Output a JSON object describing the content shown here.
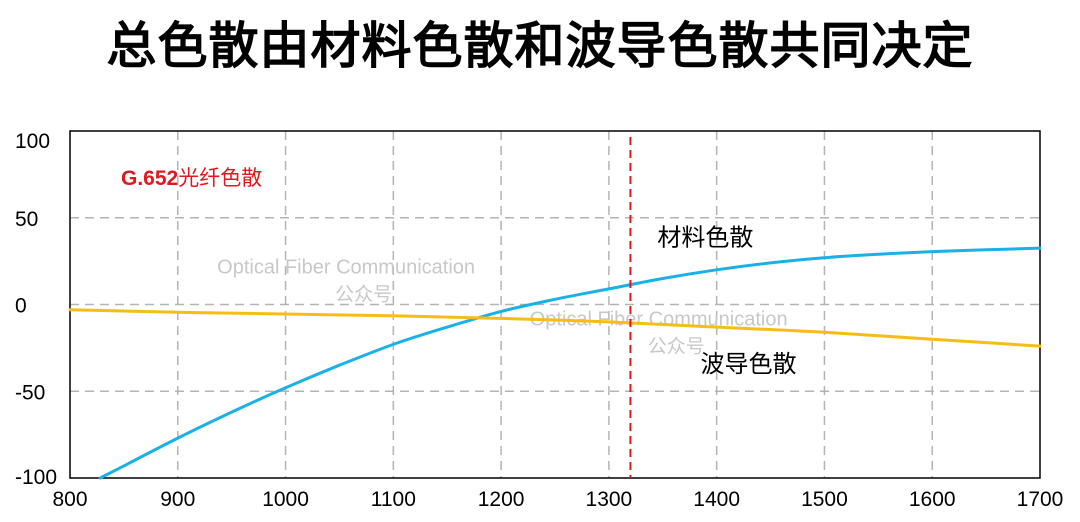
{
  "title": "总色散由材料色散和波导色散共同决定",
  "chart_data": {
    "type": "line",
    "title": "总色散由材料色散和波导色散共同决定",
    "xlabel": "",
    "ylabel": "",
    "xlim": [
      800,
      1700
    ],
    "ylim": [
      -100,
      100
    ],
    "x_ticks": [
      800,
      900,
      1000,
      1100,
      1200,
      1300,
      1400,
      1500,
      1600,
      1700
    ],
    "y_ticks": [
      100,
      50,
      0,
      -50,
      -100
    ],
    "grid": true,
    "note": "G.652光纤色散",
    "series": [
      {
        "name": "材料色散",
        "color": "#1ab1e6",
        "x": [
          828,
          850,
          900,
          950,
          1000,
          1050,
          1100,
          1150,
          1200,
          1250,
          1300,
          1350,
          1400,
          1450,
          1500,
          1550,
          1600,
          1650,
          1700
        ],
        "y": [
          -100,
          -93,
          -77,
          -62,
          -48,
          -35,
          -23,
          -13,
          -4,
          3,
          9,
          15,
          20,
          24,
          27,
          29,
          30.5,
          31.5,
          32.5
        ]
      },
      {
        "name": "波导色散",
        "color": "#f6be14",
        "x": [
          800,
          900,
          1000,
          1100,
          1200,
          1300,
          1400,
          1500,
          1600,
          1700
        ],
        "y": [
          -3,
          -4.5,
          -5.5,
          -6.5,
          -8,
          -10,
          -13,
          -16,
          -20,
          -24
        ]
      }
    ],
    "cutoff_line": {
      "x": 1320,
      "color": "#e0191e"
    },
    "annotations": [
      {
        "text": "材料色散",
        "x": 1345,
        "y": 34
      },
      {
        "text": "波导色散",
        "x": 1385,
        "y": -39
      }
    ],
    "watermarks": [
      {
        "text": "Optical Fiber Communication",
        "sub": "公众号",
        "x": 1085,
        "y": 22
      },
      {
        "text": "Optical Fiber Communication",
        "sub": "公众号",
        "x": 1375,
        "y": -8
      }
    ]
  }
}
